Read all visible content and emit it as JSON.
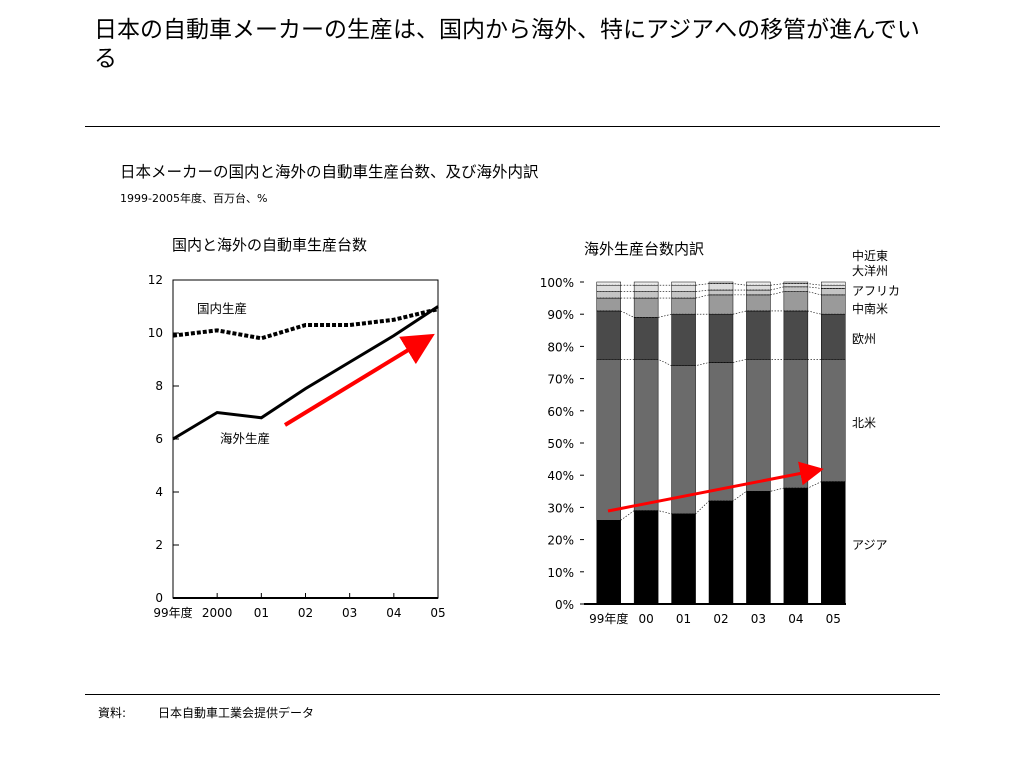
{
  "header": {
    "title": "日本の自動車メーカーの生産は、国内から海外、特にアジアへの移管が進んでいる"
  },
  "section": {
    "heading": "日本メーカーの国内と海外の自動車生産台数、及び海外内訳",
    "subheading": "1999-2005年度、百万台、%"
  },
  "footer": {
    "source_label": "資料:",
    "source_text": "日本自動車工業会提供データ"
  },
  "colors": {
    "arrow": "#ff0000",
    "asia": "#000000",
    "north_america": "#6b6b6b",
    "europe": "#4a4a4a",
    "latin_america": "#9a9a9a",
    "africa": "#c4c4c4",
    "oceania": "#dcdcdc",
    "middle_east": "#ececec"
  },
  "chart_data": [
    {
      "type": "line",
      "title": "国内と海外の自動車生産台数",
      "x": [
        "99年度",
        "2000",
        "01",
        "02",
        "03",
        "04",
        "05"
      ],
      "ylim": [
        0,
        12
      ],
      "yticks": [
        0,
        2,
        4,
        6,
        8,
        10,
        12
      ],
      "grid": false,
      "series": [
        {
          "name": "国内生産",
          "values": [
            9.9,
            10.1,
            9.8,
            10.3,
            10.3,
            10.5,
            10.9
          ],
          "style": "dashed"
        },
        {
          "name": "海外生産",
          "values": [
            6.0,
            7.0,
            6.8,
            7.9,
            8.9,
            9.9,
            11.0
          ],
          "style": "solid"
        }
      ],
      "annotation": "trend arrow (red) along 海外生産"
    },
    {
      "type": "bar",
      "stacked": true,
      "title": "海外生産台数内訳",
      "categories": [
        "99年度",
        "00",
        "01",
        "02",
        "03",
        "04",
        "05"
      ],
      "ylim": [
        0,
        100
      ],
      "yticks": [
        "0%",
        "10%",
        "20%",
        "30%",
        "40%",
        "50%",
        "60%",
        "70%",
        "80%",
        "90%",
        "100%"
      ],
      "series": [
        {
          "name": "アジア",
          "values": [
            26,
            29,
            28,
            32,
            35,
            36,
            38
          ]
        },
        {
          "name": "北米",
          "values": [
            50,
            47,
            46,
            43,
            41,
            40,
            38
          ]
        },
        {
          "name": "欧州",
          "values": [
            15,
            13,
            16,
            15,
            15,
            15,
            14
          ]
        },
        {
          "name": "中南米",
          "values": [
            4,
            6,
            5,
            6,
            5,
            6,
            6
          ]
        },
        {
          "name": "アフリカ",
          "values": [
            2,
            2,
            2,
            1.5,
            1.5,
            1.5,
            2
          ]
        },
        {
          "name": "大洋州",
          "values": [
            2,
            2,
            2,
            2,
            1.5,
            1,
            1
          ]
        },
        {
          "name": "中近東",
          "values": [
            1,
            1,
            1,
            0.5,
            1,
            0.5,
            1
          ]
        }
      ],
      "annotation": "trend arrow (red) along アジア share"
    }
  ]
}
